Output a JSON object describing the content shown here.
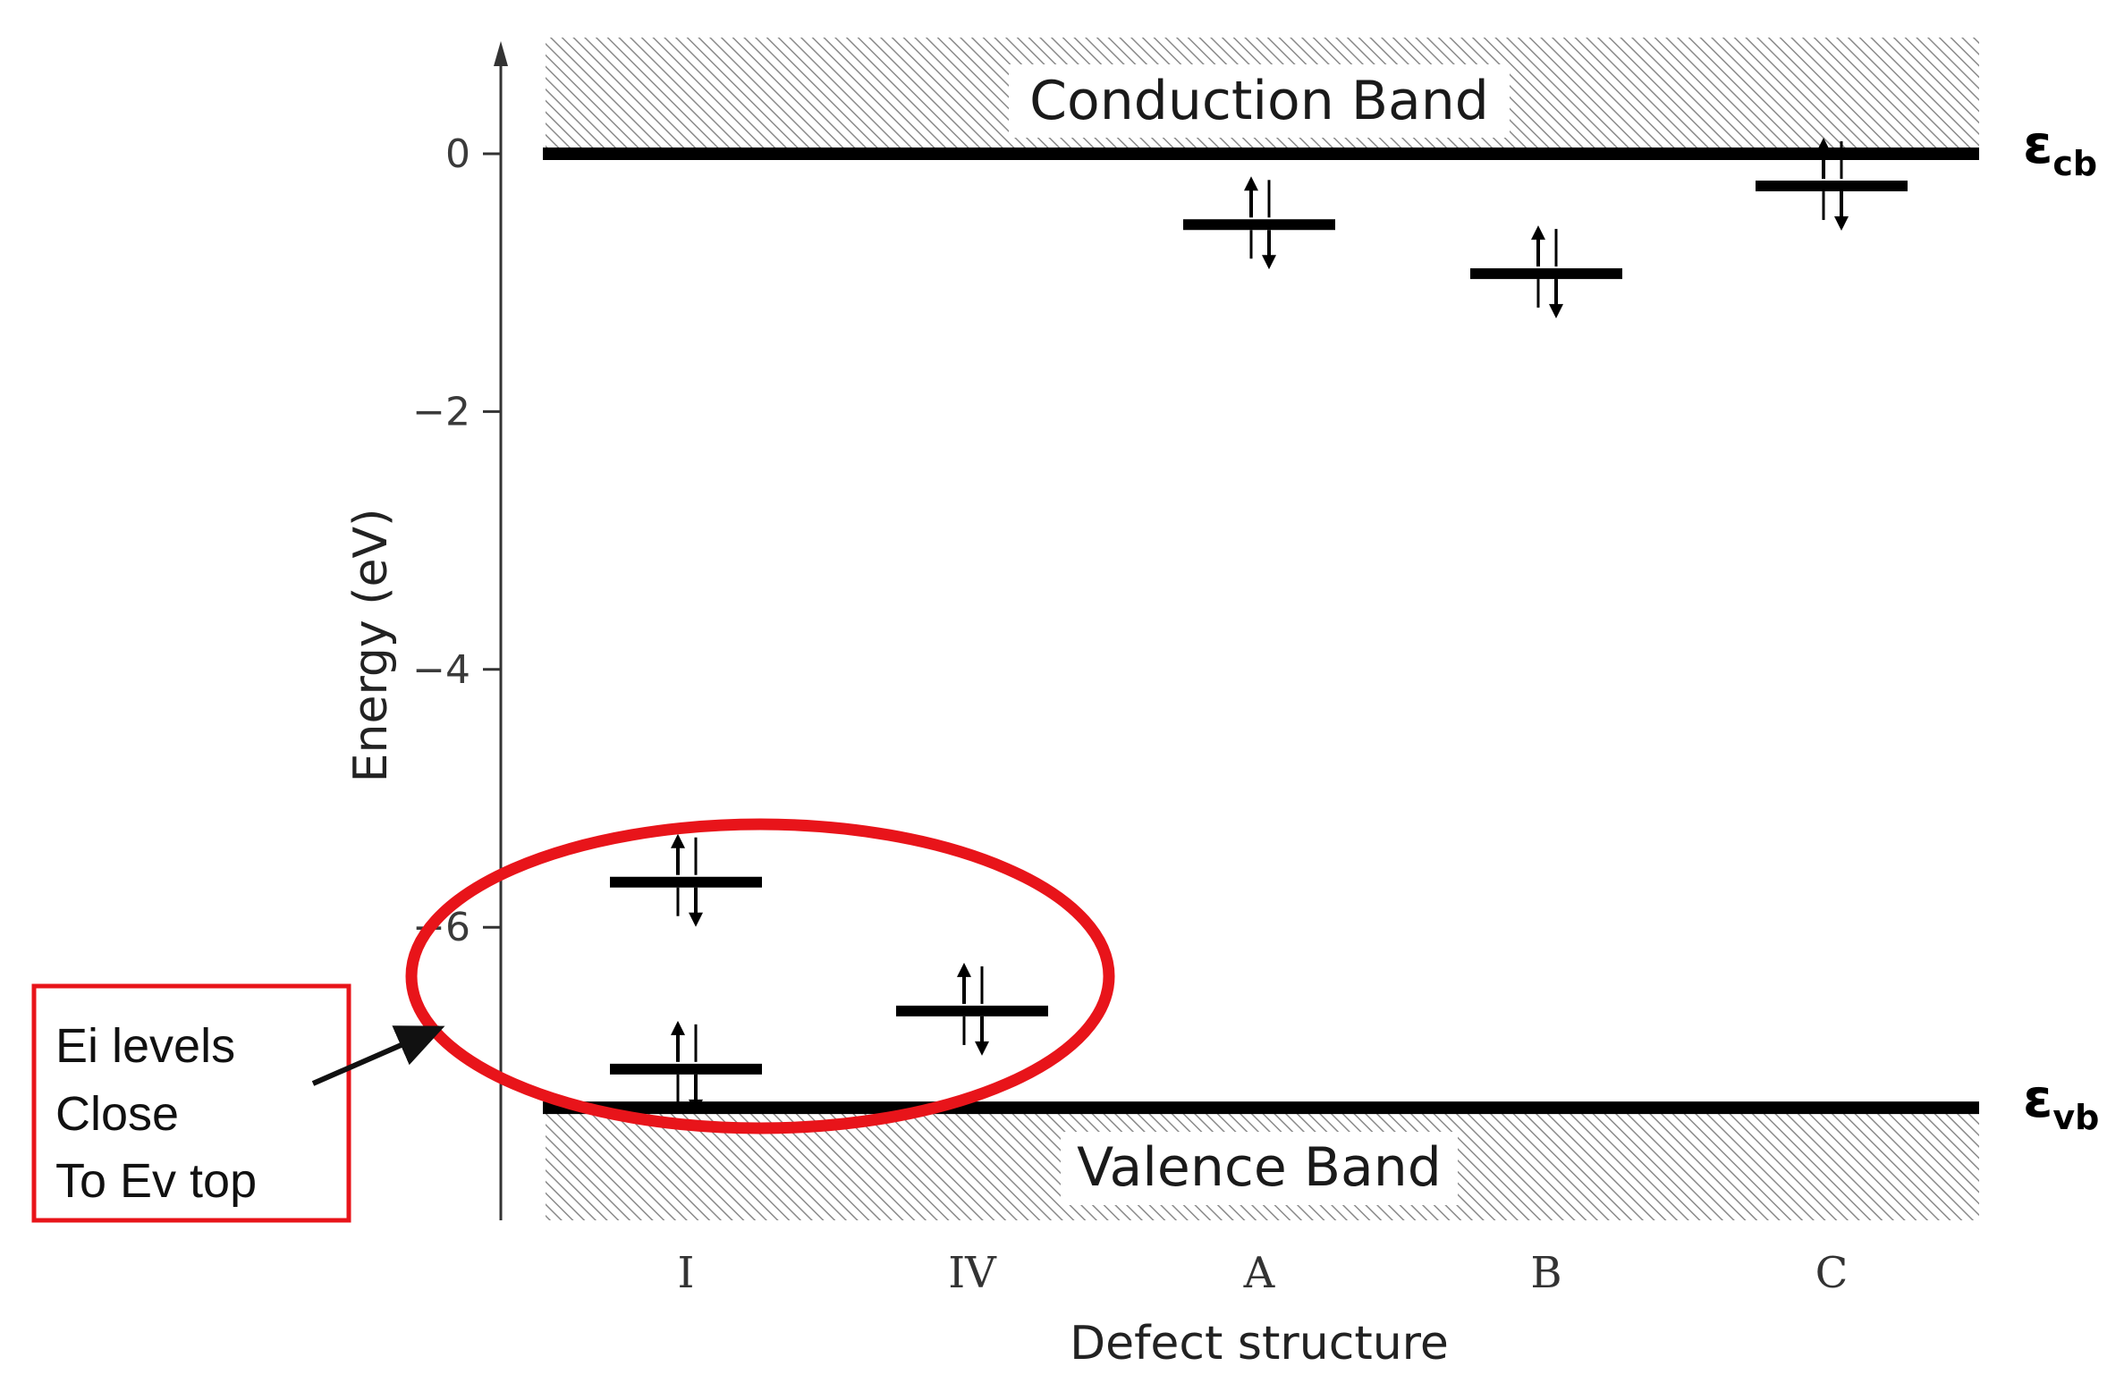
{
  "chart_data": {
    "type": "scatter",
    "xlabel": "Defect structure",
    "ylabel": "Energy (eV)",
    "ylim": [
      -8.3,
      0.9
    ],
    "yticks": [
      0,
      -2,
      -4,
      -6
    ],
    "categories": [
      "I",
      "IV",
      "A",
      "B",
      "C"
    ],
    "bands": {
      "conduction": {
        "label": "Conduction Band",
        "edge": 0,
        "edge_symbol": "ε",
        "edge_subscript": "cb"
      },
      "valence": {
        "label": "Valence Band",
        "edge": -7.4,
        "edge_symbol": "ε",
        "edge_subscript": "vb"
      }
    },
    "levels": [
      {
        "category": "I",
        "energy": -5.65
      },
      {
        "category": "I",
        "energy": -7.1
      },
      {
        "category": "IV",
        "energy": -6.65
      },
      {
        "category": "A",
        "energy": -0.55
      },
      {
        "category": "B",
        "energy": -0.93
      },
      {
        "category": "C",
        "energy": -0.25
      }
    ],
    "annotation": {
      "lines": [
        "Ei levels",
        "Close",
        "To Ev top"
      ],
      "highlight_color": "#e8141a",
      "box_color": "#e8141a"
    }
  }
}
